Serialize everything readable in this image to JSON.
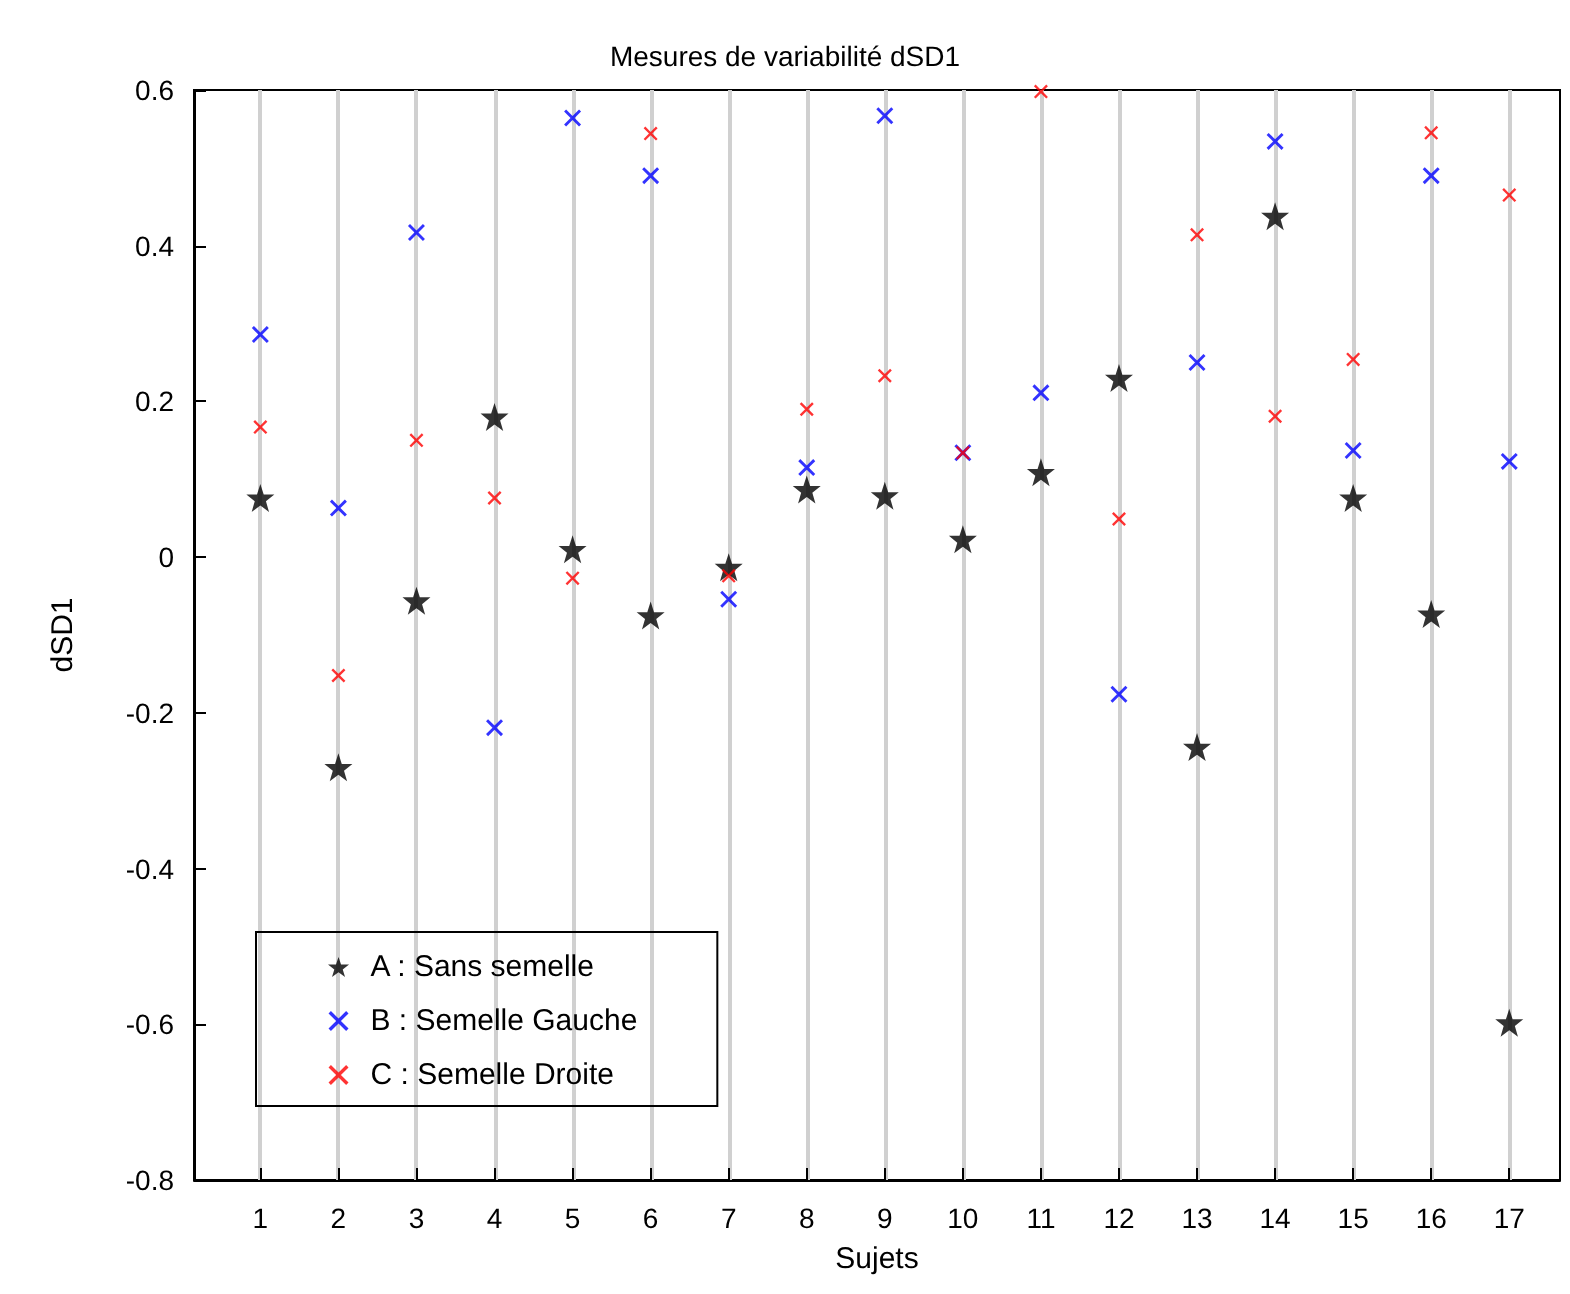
{
  "chart_data": {
    "type": "scatter",
    "title": "Mesures de variabilité dSD1",
    "xlabel": "Sujets",
    "ylabel": "dSD1",
    "x": [
      1,
      2,
      3,
      4,
      5,
      6,
      7,
      8,
      9,
      10,
      11,
      12,
      13,
      14,
      15,
      16,
      17
    ],
    "xlim": [
      0.15,
      17.65
    ],
    "xticks": [
      1,
      2,
      3,
      4,
      5,
      6,
      7,
      8,
      9,
      10,
      11,
      12,
      13,
      14,
      15,
      16,
      17
    ],
    "ylim": [
      -0.8,
      0.6
    ],
    "yticks": [
      -0.8,
      -0.6,
      -0.4,
      -0.2,
      0,
      0.2,
      0.4,
      0.6
    ],
    "grid": "x",
    "legend": "bottom left",
    "series": [
      {
        "name": "A : Sans semelle",
        "color": "#000000",
        "marker": "star",
        "values": [
          0.076,
          -0.27,
          -0.056,
          0.18,
          0.01,
          -0.075,
          -0.013,
          0.087,
          0.079,
          0.023,
          0.109,
          0.23,
          -0.244,
          0.438,
          0.076,
          -0.073,
          -0.598
        ]
      },
      {
        "name": "B : Semelle Gauche",
        "color": "#0000ff",
        "marker": "cross",
        "values": [
          0.286,
          0.063,
          0.417,
          -0.219,
          0.564,
          0.49,
          -0.054,
          0.115,
          0.567,
          0.134,
          0.211,
          -0.176,
          0.25,
          0.534,
          0.137,
          0.49,
          0.123
        ]
      },
      {
        "name": "C : Semelle Droite",
        "color": "#ff0000",
        "marker": "cross",
        "values": [
          0.167,
          -0.152,
          0.15,
          0.076,
          -0.027,
          0.544,
          -0.024,
          0.19,
          0.233,
          0.134,
          0.598,
          0.049,
          0.414,
          0.181,
          0.254,
          0.545,
          0.465
        ]
      }
    ]
  }
}
